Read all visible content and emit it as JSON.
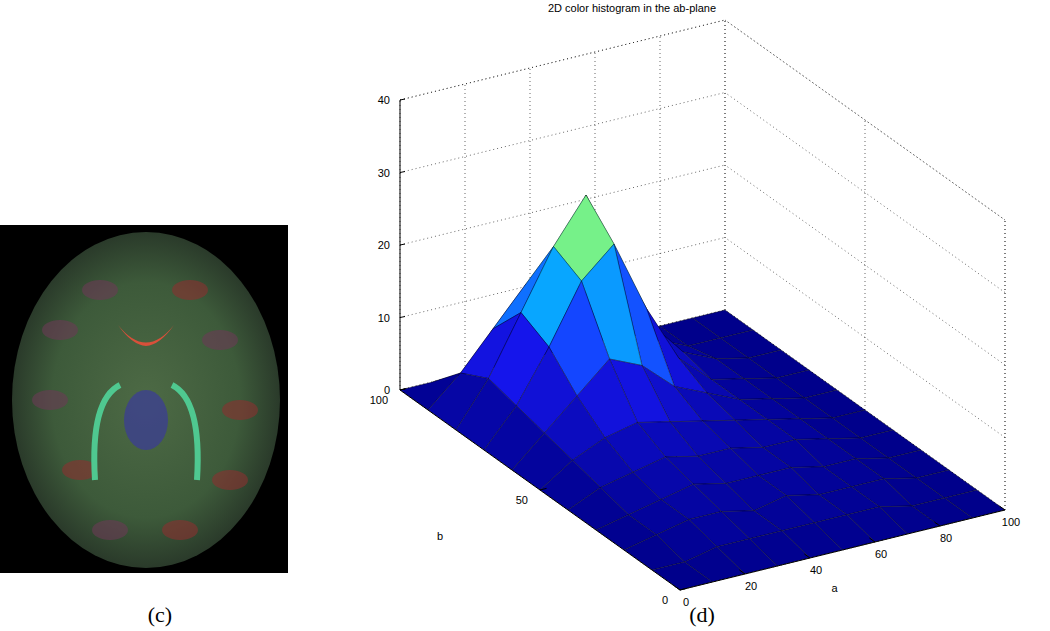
{
  "figure": {
    "labels": [
      "(c)",
      "(d)"
    ]
  },
  "chart_data": {
    "type": "surface",
    "title": "2D color histogram in the ab-plane",
    "xlabel": "a",
    "ylabel": "b",
    "x": [
      0,
      10,
      20,
      30,
      40,
      50,
      60,
      70,
      80,
      90,
      100
    ],
    "y": [
      0,
      10,
      20,
      30,
      40,
      50,
      60,
      70,
      80,
      90,
      100
    ],
    "z": [
      [
        0,
        0,
        0,
        0,
        0,
        0,
        0,
        0,
        0,
        0,
        0
      ],
      [
        0,
        0,
        1,
        1,
        1,
        1,
        1,
        1,
        0,
        0,
        0
      ],
      [
        0,
        1,
        2,
        2,
        1,
        2,
        1,
        1,
        1,
        0,
        0
      ],
      [
        0,
        1,
        2,
        3,
        2,
        2,
        2,
        1,
        1,
        0,
        0
      ],
      [
        0,
        2,
        3,
        4,
        3,
        3,
        2,
        2,
        1,
        0,
        0
      ],
      [
        0,
        3,
        5,
        6,
        5,
        4,
        3,
        2,
        1,
        0,
        0
      ],
      [
        0,
        4,
        8,
        12,
        10,
        6,
        4,
        2,
        1,
        0,
        0
      ],
      [
        0,
        5,
        12,
        20,
        24,
        14,
        6,
        2,
        1,
        0,
        0
      ],
      [
        0,
        6,
        14,
        22,
        28,
        18,
        8,
        3,
        1,
        0,
        0
      ],
      [
        0,
        4,
        9,
        14,
        16,
        10,
        5,
        2,
        0,
        0,
        0
      ],
      [
        0,
        0,
        0,
        0,
        0,
        0,
        0,
        0,
        0,
        0,
        0
      ]
    ],
    "xlim": [
      0,
      100
    ],
    "xticks": [
      0,
      20,
      40,
      60,
      80,
      100
    ],
    "ylim": [
      0,
      100
    ],
    "yticks": [
      0,
      50,
      100
    ],
    "zlim": [
      0,
      40
    ],
    "zticks": [
      0,
      10,
      20,
      30,
      40
    ],
    "grid": true
  }
}
